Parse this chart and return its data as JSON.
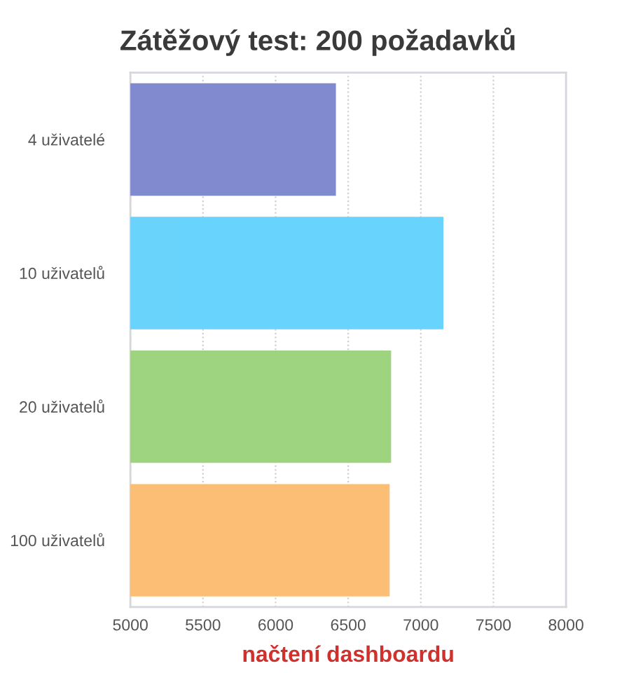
{
  "chart_data": {
    "type": "bar",
    "orientation": "horizontal",
    "title": "Zátěžový test: 200 požadavků",
    "xlabel": "načtení dashboardu",
    "categories": [
      "4 uživatelé",
      "10 uživatelů",
      "20 uživatelů",
      "100 uživatelů"
    ],
    "values": [
      6410,
      7150,
      6790,
      6780
    ],
    "colors": [
      "#7f87cf",
      "#66d3fc",
      "#9dd37e",
      "#fbbd72"
    ],
    "xlim": [
      5000,
      8000
    ],
    "xticks": [
      5000,
      5500,
      6000,
      6500,
      7000,
      7500,
      8000
    ],
    "grid": "x",
    "legend": false
  }
}
